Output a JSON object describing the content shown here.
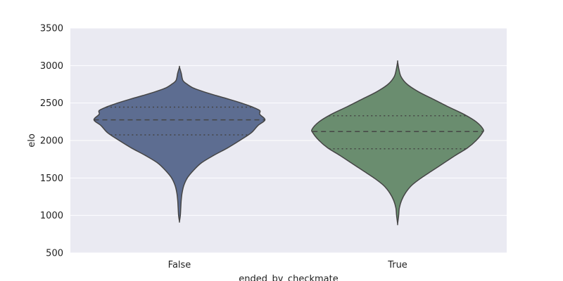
{
  "chart_data": {
    "type": "violin",
    "xlabel": "ended_by_checkmate",
    "ylabel": "elo",
    "ylim": [
      500,
      3500
    ],
    "yticks": [
      500,
      1000,
      1500,
      2000,
      2500,
      3000,
      3500
    ],
    "grid": true,
    "categories": [
      "False",
      "True"
    ],
    "series": [
      {
        "category": "False",
        "color": "#5d6d91",
        "min": 920,
        "max": 2980,
        "q1": 2075,
        "median": 2275,
        "q3": 2445,
        "profile": [
          [
            920,
            0.0
          ],
          [
            1000,
            0.01
          ],
          [
            1100,
            0.015
          ],
          [
            1200,
            0.02
          ],
          [
            1300,
            0.03
          ],
          [
            1400,
            0.05
          ],
          [
            1500,
            0.09
          ],
          [
            1600,
            0.16
          ],
          [
            1700,
            0.25
          ],
          [
            1800,
            0.39
          ],
          [
            1900,
            0.55
          ],
          [
            2000,
            0.69
          ],
          [
            2100,
            0.82
          ],
          [
            2200,
            0.9
          ],
          [
            2275,
            0.98
          ],
          [
            2350,
            0.92
          ],
          [
            2400,
            0.92
          ],
          [
            2450,
            0.83
          ],
          [
            2500,
            0.71
          ],
          [
            2550,
            0.57
          ],
          [
            2600,
            0.42
          ],
          [
            2650,
            0.28
          ],
          [
            2700,
            0.16
          ],
          [
            2750,
            0.09
          ],
          [
            2800,
            0.04
          ],
          [
            2900,
            0.02
          ],
          [
            2980,
            0.0
          ]
        ]
      },
      {
        "category": "True",
        "color": "#6a8d6f",
        "min": 890,
        "max": 3050,
        "q1": 1890,
        "median": 2120,
        "q3": 2330,
        "profile": [
          [
            890,
            0.0
          ],
          [
            1000,
            0.012
          ],
          [
            1100,
            0.02
          ],
          [
            1200,
            0.045
          ],
          [
            1300,
            0.09
          ],
          [
            1400,
            0.16
          ],
          [
            1500,
            0.27
          ],
          [
            1600,
            0.4
          ],
          [
            1700,
            0.53
          ],
          [
            1800,
            0.66
          ],
          [
            1900,
            0.8
          ],
          [
            2000,
            0.9
          ],
          [
            2100,
            0.97
          ],
          [
            2150,
            0.98
          ],
          [
            2250,
            0.9
          ],
          [
            2350,
            0.76
          ],
          [
            2450,
            0.58
          ],
          [
            2550,
            0.41
          ],
          [
            2650,
            0.24
          ],
          [
            2750,
            0.11
          ],
          [
            2850,
            0.04
          ],
          [
            2950,
            0.015
          ],
          [
            3050,
            0.0
          ]
        ]
      }
    ]
  }
}
